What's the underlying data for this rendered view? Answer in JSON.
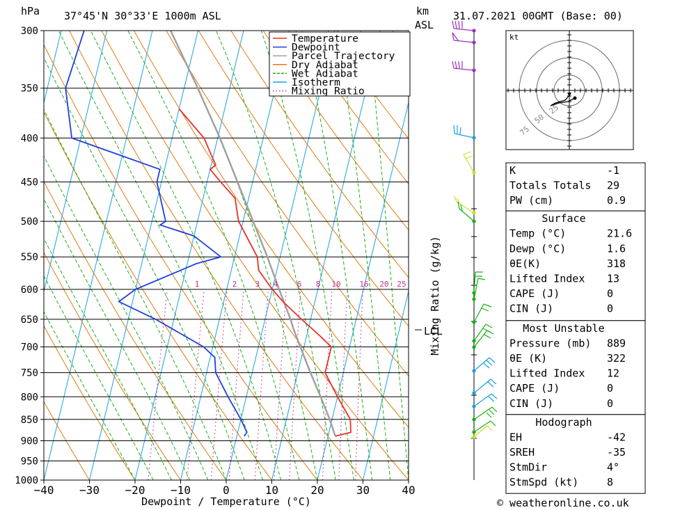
{
  "header": {
    "location": "37°45'N  30°33'E  1000m  ASL",
    "date": "31.07.2021  00GMT  (Base: 00)",
    "left_unit": "hPa",
    "km_label": "km",
    "asl_label": "ASL"
  },
  "footer": {
    "copyright": "© weatheronline.co.uk"
  },
  "colors": {
    "temperature": "#e8302a",
    "dewpoint": "#1f3fdc",
    "parcel": "#a0a0a0",
    "dry_adiabat": "#e07a10",
    "wet_adiabat": "#16b016",
    "isotherm": "#19a0e0",
    "mixing_ratio": "#d02a8c"
  },
  "chart_data": {
    "type": "line",
    "xlabel": "Dewpoint / Temperature (°C)",
    "ylabel_right": "Mixing Ratio (g/kg)",
    "x_ticks": [
      -40,
      -30,
      -20,
      -10,
      0,
      10,
      20,
      30,
      40
    ],
    "pressure_levels": [
      300,
      350,
      400,
      450,
      500,
      550,
      600,
      650,
      700,
      750,
      800,
      850,
      900,
      950,
      1000
    ],
    "xlim": [
      -40,
      40
    ],
    "ylim_hpa": [
      1000,
      300
    ],
    "legend": [
      {
        "label": "Temperature",
        "color": "#e8302a",
        "style": "solid"
      },
      {
        "label": "Dewpoint",
        "color": "#1f3fdc",
        "style": "solid"
      },
      {
        "label": "Parcel Trajectory",
        "color": "#a0a0a0",
        "style": "solid"
      },
      {
        "label": "Dry Adiabat",
        "color": "#e07a10",
        "style": "solid"
      },
      {
        "label": "Wet Adiabat",
        "color": "#16b016",
        "style": "dashed"
      },
      {
        "label": "Isotherm",
        "color": "#19a0e0",
        "style": "solid"
      },
      {
        "label": "Mixing Ratio",
        "color": "#d02a8c",
        "style": "dotted"
      }
    ],
    "series": [
      {
        "name": "Temperature",
        "points": [
          [
            889,
            21.6
          ],
          [
            880,
            24.8
          ],
          [
            850,
            24.0
          ],
          [
            800,
            20.0
          ],
          [
            750,
            16.0
          ],
          [
            720,
            16.0
          ],
          [
            700,
            16.0
          ],
          [
            680,
            13.0
          ],
          [
            650,
            8.0
          ],
          [
            620,
            3.0
          ],
          [
            600,
            0.0
          ],
          [
            570,
            -4.0
          ],
          [
            550,
            -5.0
          ],
          [
            500,
            -11.0
          ],
          [
            470,
            -13.0
          ],
          [
            450,
            -17.0
          ],
          [
            435,
            -20.0
          ],
          [
            430,
            -19.0
          ],
          [
            400,
            -23.0
          ],
          [
            370,
            -30.0
          ]
        ]
      },
      {
        "name": "Dewpoint",
        "points": [
          [
            889,
            1.6
          ],
          [
            880,
            2.0
          ],
          [
            850,
            0.0
          ],
          [
            800,
            -4.0
          ],
          [
            750,
            -8.0
          ],
          [
            720,
            -9.0
          ],
          [
            700,
            -12.0
          ],
          [
            650,
            -24.0
          ],
          [
            620,
            -33.0
          ],
          [
            600,
            -30.0
          ],
          [
            560,
            -18.0
          ],
          [
            550,
            -13.0
          ],
          [
            520,
            -20.0
          ],
          [
            505,
            -28.0
          ],
          [
            500,
            -27.0
          ],
          [
            450,
            -31.0
          ],
          [
            435,
            -31.0
          ],
          [
            400,
            -52.0
          ],
          [
            350,
            -56.0
          ],
          [
            300,
            -55.0
          ]
        ]
      },
      {
        "name": "Parcel Trajectory",
        "points": [
          [
            889,
            21.6
          ],
          [
            850,
            19.5
          ],
          [
            800,
            16.3
          ],
          [
            750,
            12.8
          ],
          [
            700,
            9.2
          ],
          [
            665,
            6.6
          ],
          [
            650,
            5.6
          ],
          [
            600,
            1.5
          ],
          [
            550,
            -2.8
          ],
          [
            500,
            -7.8
          ],
          [
            450,
            -13.3
          ],
          [
            400,
            -19.5
          ],
          [
            350,
            -27.0
          ],
          [
            300,
            -36.0
          ]
        ]
      }
    ],
    "mixing_ratio_labels": [
      "1",
      "2",
      "3",
      "4",
      "6",
      "8",
      "10",
      "16",
      "20",
      "25"
    ],
    "lcl_label": "LCL",
    "height_ticks": [
      "1",
      "2",
      "3",
      "4",
      "5",
      "6",
      "7",
      "8"
    ]
  },
  "hodograph": {
    "unit": "kt",
    "ring_labels": [
      "25",
      "50",
      "75"
    ]
  },
  "indices": [
    {
      "label": "K",
      "value": "-1"
    },
    {
      "label": "Totals Totals",
      "value": "29"
    },
    {
      "label": "PW (cm)",
      "value": "0.9"
    }
  ],
  "surface": {
    "title": "Surface",
    "rows": [
      {
        "label": "Temp (°C)",
        "value": "21.6"
      },
      {
        "label": "Dewp (°C)",
        "value": "1.6"
      },
      {
        "label": "θE(K)",
        "value": "318"
      },
      {
        "label": "Lifted Index",
        "value": "13"
      },
      {
        "label": "CAPE (J)",
        "value": "0"
      },
      {
        "label": "CIN (J)",
        "value": "0"
      }
    ]
  },
  "most_unstable": {
    "title": "Most Unstable",
    "rows": [
      {
        "label": "Pressure (mb)",
        "value": "889"
      },
      {
        "label": "θE (K)",
        "value": "322"
      },
      {
        "label": "Lifted Index",
        "value": "12"
      },
      {
        "label": "CAPE (J)",
        "value": "0"
      },
      {
        "label": "CIN (J)",
        "value": "0"
      }
    ]
  },
  "hodograph_stats": {
    "title": "Hodograph",
    "rows": [
      {
        "label": "EH",
        "value": "-42"
      },
      {
        "label": "SREH",
        "value": "-35"
      },
      {
        "label": "StmDir",
        "value": "4°"
      },
      {
        "label": "StmSpd (kt)",
        "value": "8"
      }
    ]
  }
}
